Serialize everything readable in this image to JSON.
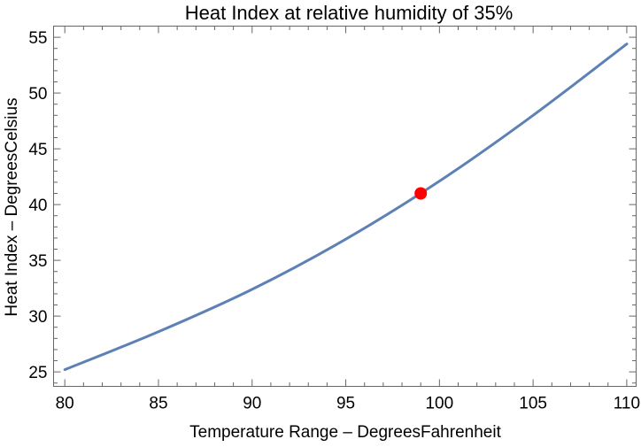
{
  "chart_data": {
    "type": "line",
    "title": "Heat Index at relative humidity of 35%",
    "xlabel": "Temperature Range – DegreesFahrenheit",
    "ylabel": "Heat Index – DegreesCelsius",
    "xlim": [
      79.4,
      110.5
    ],
    "ylim": [
      23.7,
      56.0
    ],
    "xticks": [
      80,
      85,
      90,
      95,
      100,
      105,
      110
    ],
    "yticks": [
      25,
      30,
      35,
      40,
      45,
      50,
      55
    ],
    "grid": false,
    "series": [
      {
        "color": "#5e81b5",
        "x": [
          80,
          85,
          90,
          95,
          100,
          105,
          110
        ],
        "y": [
          25.2,
          28.6,
          32.4,
          36.9,
          42.1,
          48.0,
          54.4
        ]
      }
    ],
    "highlight_point": {
      "x": 99,
      "y": 41.0,
      "color": "#ff0000"
    }
  }
}
